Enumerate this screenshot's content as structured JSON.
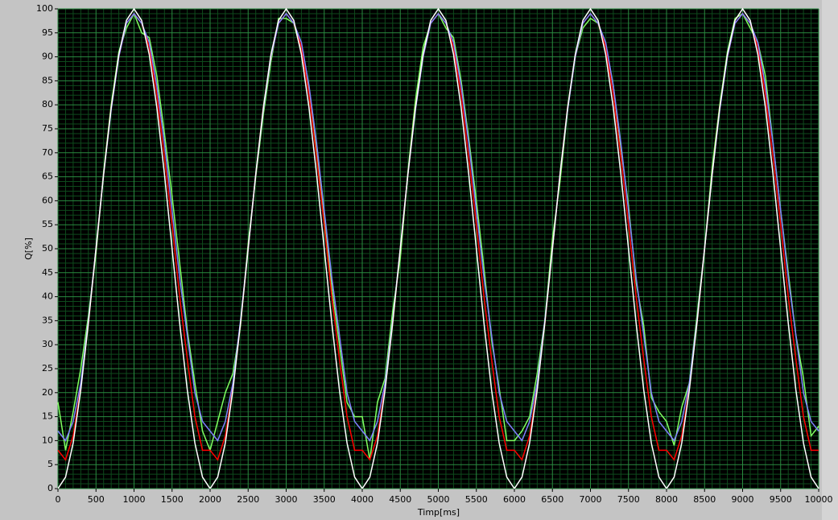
{
  "chart_data": {
    "type": "line",
    "x_label": "Timp[ms]",
    "y_label": "Q[%]",
    "x": [
      0,
      100,
      200,
      300,
      400,
      500,
      600,
      700,
      800,
      900,
      1000,
      1100,
      1200,
      1300,
      1400,
      1500,
      1600,
      1700,
      1800,
      1900,
      2000,
      2100,
      2200,
      2300,
      2400,
      2500,
      2600,
      2700,
      2800,
      2900,
      3000,
      3100,
      3200,
      3300,
      3400,
      3500,
      3600,
      3700,
      3800,
      3900,
      4000,
      4100,
      4200,
      4300,
      4400,
      4500,
      4600,
      4700,
      4800,
      4900,
      5000,
      5100,
      5200,
      5300,
      5400,
      5500,
      5600,
      5700,
      5800,
      5900,
      6000,
      6100,
      6200,
      6300,
      6400,
      6500,
      6600,
      6700,
      6800,
      6900,
      7000,
      7100,
      7200,
      7300,
      7400,
      7500,
      7600,
      7700,
      7800,
      7900,
      8000,
      8100,
      8200,
      8300,
      8400,
      8500,
      8600,
      8700,
      8800,
      8900,
      9000,
      9100,
      9200,
      9300,
      9400,
      9500,
      9600,
      9700,
      9800,
      9900,
      10000
    ],
    "series": [
      {
        "color": "#80ff60",
        "values": [
          18,
          8,
          16,
          25,
          36,
          49,
          66,
          80,
          91,
          96,
          99,
          95,
          94,
          86,
          74,
          61,
          47,
          33,
          22,
          12,
          8,
          14,
          20,
          24,
          34,
          51,
          65,
          78,
          89,
          98,
          98,
          97,
          91,
          83,
          70,
          57,
          42,
          30,
          18,
          15,
          15,
          6,
          18,
          23,
          37,
          48,
          66,
          81,
          92,
          97,
          99,
          96,
          94,
          85,
          73,
          60,
          46,
          31,
          21,
          10,
          10,
          12,
          15,
          24,
          35,
          52,
          64,
          79,
          90,
          96,
          98,
          97,
          92,
          84,
          71,
          59,
          43,
          34,
          19,
          16,
          14,
          9,
          17,
          22,
          36,
          50,
          67,
          80,
          91,
          98,
          99,
          96,
          93,
          86,
          72,
          58,
          45,
          32,
          23,
          11,
          13
        ]
      },
      {
        "color": "#ff0000",
        "values": [
          8,
          6,
          11,
          21,
          34.5,
          50,
          65.5,
          79.4,
          90,
          97,
          99,
          97,
          92,
          82,
          69,
          55,
          40,
          27,
          15,
          8,
          8,
          6,
          11,
          21,
          34.5,
          50,
          65.5,
          79.4,
          90,
          97,
          99,
          97,
          92,
          82,
          69,
          55,
          40,
          27,
          15,
          8,
          8,
          6,
          11,
          21,
          34.5,
          50,
          65.5,
          79.4,
          90,
          97,
          99,
          97,
          92,
          82,
          69,
          55,
          40,
          27,
          15,
          8,
          8,
          6,
          11,
          21,
          34.5,
          50,
          65.5,
          79.4,
          90,
          97,
          99,
          97,
          92,
          82,
          69,
          55,
          40,
          27,
          15,
          8,
          8,
          6,
          11,
          21,
          34.5,
          50,
          65.5,
          79.4,
          90,
          97,
          99,
          97,
          92,
          82,
          69,
          55,
          40,
          27,
          15,
          8,
          8
        ]
      },
      {
        "color": "#8080ff",
        "values": [
          12,
          10,
          14,
          22,
          35,
          50,
          65.5,
          79,
          90,
          97,
          99,
          97,
          93,
          84,
          72,
          58,
          44,
          32,
          20,
          14,
          12,
          10,
          14,
          22,
          35,
          50,
          65.5,
          79,
          90,
          97,
          99,
          97,
          93,
          84,
          72,
          58,
          44,
          32,
          20,
          14,
          12,
          10,
          14,
          22,
          35,
          50,
          65.5,
          79,
          90,
          97,
          99,
          97,
          93,
          84,
          72,
          58,
          44,
          32,
          20,
          14,
          12,
          10,
          14,
          22,
          35,
          50,
          65.5,
          79,
          90,
          97,
          99,
          97,
          93,
          84,
          72,
          58,
          44,
          32,
          20,
          14,
          12,
          10,
          14,
          22,
          35,
          50,
          65.5,
          79,
          90,
          97,
          99,
          97,
          93,
          84,
          72,
          58,
          44,
          32,
          20,
          14,
          12
        ]
      },
      {
        "color": "#ffffff",
        "values": [
          0,
          2.4,
          9.5,
          20.6,
          34.5,
          50,
          65.5,
          79.4,
          90.5,
          97.6,
          100,
          97.6,
          90.5,
          79.4,
          65.5,
          50,
          34.5,
          20.6,
          9.5,
          2.4,
          0,
          2.4,
          9.5,
          20.6,
          34.5,
          50,
          65.5,
          79.4,
          90.5,
          97.6,
          100,
          97.6,
          90.5,
          79.4,
          65.5,
          50,
          34.5,
          20.6,
          9.5,
          2.4,
          0,
          2.4,
          9.5,
          20.6,
          34.5,
          50,
          65.5,
          79.4,
          90.5,
          97.6,
          100,
          97.6,
          90.5,
          79.4,
          65.5,
          50,
          34.5,
          20.6,
          9.5,
          2.4,
          0,
          2.4,
          9.5,
          20.6,
          34.5,
          50,
          65.5,
          79.4,
          90.5,
          97.6,
          100,
          97.6,
          90.5,
          79.4,
          65.5,
          50,
          34.5,
          20.6,
          9.5,
          2.4,
          0,
          2.4,
          9.5,
          20.6,
          34.5,
          50,
          65.5,
          79.4,
          90.5,
          97.6,
          100,
          97.6,
          90.5,
          79.4,
          65.5,
          50,
          34.5,
          20.6,
          9.5,
          2.4,
          0
        ]
      }
    ],
    "xlim": [
      0,
      10000
    ],
    "ylim": [
      0,
      100
    ],
    "xticks": [
      0,
      500,
      1000,
      1500,
      2000,
      2500,
      3000,
      3500,
      4000,
      4500,
      5000,
      5500,
      6000,
      6500,
      7000,
      7500,
      8000,
      8500,
      9000,
      9500,
      10000
    ],
    "yticks": [
      0,
      5,
      10,
      15,
      20,
      25,
      30,
      35,
      40,
      45,
      50,
      55,
      60,
      65,
      70,
      75,
      80,
      85,
      90,
      95,
      100
    ],
    "grid": true
  }
}
